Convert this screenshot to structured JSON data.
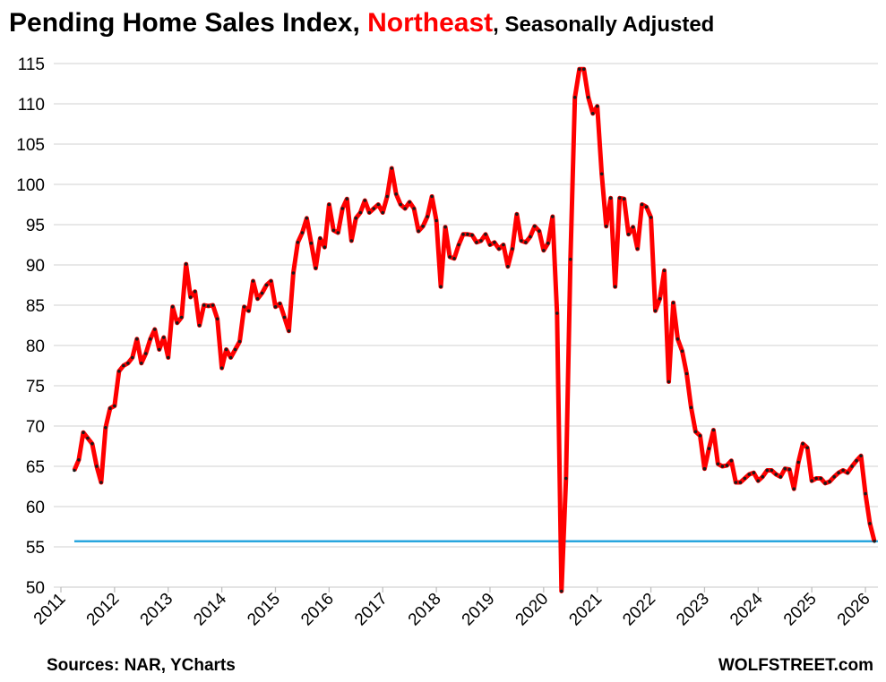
{
  "chart_data": {
    "type": "line",
    "title_parts": [
      "Pending Home Sales Index, ",
      "Northeast",
      ", Seasonally Adjusted"
    ],
    "title_colors": [
      "#000000",
      "#ff0000",
      "#000000"
    ],
    "source": "Sources: NAR, YCharts",
    "credit": "WOLFSTREET.com",
    "x": [
      2011.25,
      2011.333,
      2011.417,
      2011.5,
      2011.583,
      2011.667,
      2011.75,
      2011.833,
      2011.917,
      2012,
      2012.083,
      2012.167,
      2012.25,
      2012.333,
      2012.417,
      2012.5,
      2012.583,
      2012.667,
      2012.75,
      2012.833,
      2012.917,
      2013,
      2013.083,
      2013.167,
      2013.25,
      2013.333,
      2013.417,
      2013.5,
      2013.583,
      2013.667,
      2013.75,
      2013.833,
      2013.917,
      2014,
      2014.083,
      2014.167,
      2014.25,
      2014.333,
      2014.417,
      2014.5,
      2014.583,
      2014.667,
      2014.75,
      2014.833,
      2014.917,
      2015,
      2015.083,
      2015.167,
      2015.25,
      2015.333,
      2015.417,
      2015.5,
      2015.583,
      2015.667,
      2015.75,
      2015.833,
      2015.917,
      2016,
      2016.083,
      2016.167,
      2016.25,
      2016.333,
      2016.417,
      2016.5,
      2016.583,
      2016.667,
      2016.75,
      2016.833,
      2016.917,
      2017,
      2017.083,
      2017.167,
      2017.25,
      2017.333,
      2017.417,
      2017.5,
      2017.583,
      2017.667,
      2017.75,
      2017.833,
      2017.917,
      2018,
      2018.083,
      2018.167,
      2018.25,
      2018.333,
      2018.417,
      2018.5,
      2018.583,
      2018.667,
      2018.75,
      2018.833,
      2018.917,
      2019,
      2019.083,
      2019.167,
      2019.25,
      2019.333,
      2019.417,
      2019.5,
      2019.583,
      2019.667,
      2019.75,
      2019.833,
      2019.917,
      2020,
      2020.083,
      2020.167,
      2020.25,
      2020.333,
      2020.417,
      2020.5,
      2020.583,
      2020.667,
      2020.75,
      2020.833,
      2020.917,
      2021,
      2021.083,
      2021.167,
      2021.25,
      2021.333,
      2021.417,
      2021.5,
      2021.583,
      2021.667,
      2021.75,
      2021.833,
      2021.917,
      2022,
      2022.083,
      2022.167,
      2022.25,
      2022.333,
      2022.417,
      2022.5,
      2022.583,
      2022.667,
      2022.75,
      2022.833,
      2022.917,
      2023,
      2023.083,
      2023.167,
      2023.25,
      2023.333,
      2023.417,
      2023.5,
      2023.583,
      2023.667,
      2023.75,
      2023.833,
      2023.917,
      2024,
      2024.083,
      2024.167,
      2024.25,
      2024.333,
      2024.417,
      2024.5,
      2024.583,
      2024.667,
      2024.75,
      2024.833,
      2024.917,
      2025,
      2025.083,
      2025.167,
      2025.25,
      2025.333,
      2025.417,
      2025.5,
      2025.583,
      2025.667,
      2025.75,
      2025.833,
      2025.917,
      2026,
      2026.083,
      2026.167
    ],
    "series": [
      {
        "color": "#ff0000",
        "marker_color": "#1a1a1a",
        "values": [
          64.5,
          65.8,
          69.2,
          68.5,
          67.8,
          65,
          63,
          69.8,
          72.2,
          72.5,
          76.8,
          77.5,
          77.8,
          78.5,
          80.8,
          77.8,
          79,
          80.8,
          82,
          79.5,
          81,
          78.5,
          84.8,
          82.8,
          83.5,
          90.1,
          86,
          86.7,
          82.5,
          85,
          84.9,
          85,
          83.3,
          77.2,
          79.5,
          78.5,
          79.5,
          80.5,
          84.8,
          84.3,
          88,
          85.8,
          86.5,
          87.5,
          88,
          84.8,
          85.2,
          83.5,
          81.8,
          89,
          92.8,
          94,
          95.8,
          92.7,
          89.6,
          93.3,
          92.2,
          97.5,
          94.3,
          94,
          97,
          98.2,
          93,
          95.8,
          96.5,
          98,
          96.5,
          97,
          97.5,
          96.5,
          98.5,
          102,
          98.8,
          97.5,
          97,
          97.8,
          97,
          94.2,
          94.8,
          96,
          98.5,
          95.5,
          87.3,
          94.7,
          91,
          90.8,
          92.5,
          93.8,
          93.8,
          93.7,
          92.8,
          93,
          93.8,
          92.5,
          92.8,
          92,
          92.5,
          89.8,
          92,
          96.3,
          93,
          92.8,
          93.5,
          94.8,
          94.2,
          91.8,
          92.7,
          96,
          84,
          49.5,
          63.5,
          90.7,
          110.8,
          114.3,
          114.3,
          110.8,
          108.8,
          109.7,
          101.3,
          94.8,
          98.3,
          87.3,
          98.3,
          98.2,
          93.8,
          94.7,
          92,
          97.5,
          97.2,
          95.9,
          84.3,
          85.8,
          89.3,
          75.5,
          85.3,
          80.8,
          79.3,
          76.5,
          72.3,
          69.3,
          68.8,
          64.7,
          67.2,
          69.5,
          65.3,
          65,
          65.1,
          65.7,
          63,
          63,
          63.5,
          64,
          64.2,
          63.2,
          63.7,
          64.5,
          64.5,
          64,
          63.7,
          64.7,
          64.6,
          62.2,
          65.5,
          67.8,
          67.3,
          63.2,
          63.5,
          63.5,
          62.9,
          63.1,
          63.7,
          64.2,
          64.5,
          64.2,
          65,
          65.7,
          66.3,
          61.6,
          57.9,
          55.7
        ]
      }
    ],
    "reference_line": {
      "value": 55.7,
      "color": "#29a6de"
    },
    "xlim": [
      2011,
      2026.2
    ],
    "xticks": [
      2011,
      2012,
      2013,
      2014,
      2015,
      2016,
      2017,
      2018,
      2019,
      2020,
      2021,
      2022,
      2023,
      2024,
      2025,
      2026
    ],
    "ylim": [
      50,
      115
    ],
    "yticks": [
      50,
      55,
      60,
      65,
      70,
      75,
      80,
      85,
      90,
      95,
      100,
      105,
      110,
      115
    ],
    "grid": true
  }
}
